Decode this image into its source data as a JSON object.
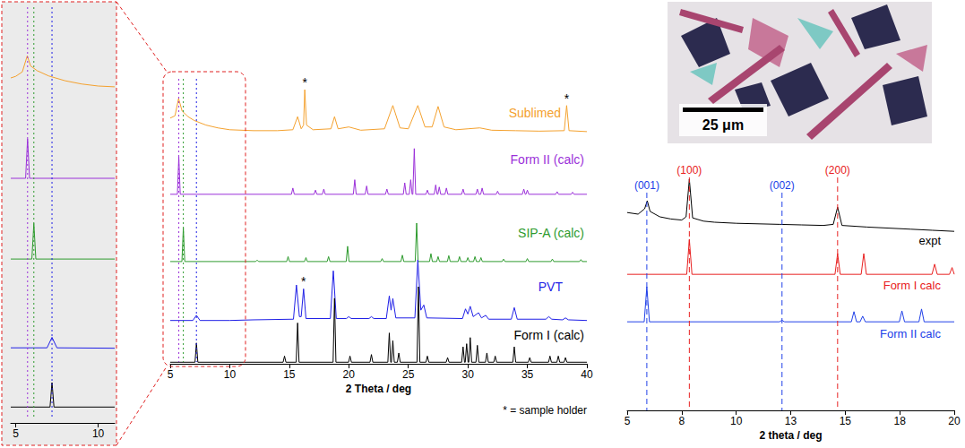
{
  "micrograph": {
    "scale_bar": "25 μm"
  },
  "chart_data": [
    {
      "type": "line",
      "xlim": [
        4.7,
        11
      ],
      "xticks": [
        5,
        10
      ],
      "ylim": [
        0,
        100
      ],
      "tick_labels": "x",
      "reference_lines": [
        {
          "x": 5.72,
          "color": "#9b30d9",
          "line_style": "dotted"
        },
        {
          "x": 6.1,
          "color": "#2e9b2e",
          "line_style": "dotted"
        },
        {
          "x": 7.2,
          "color": "#1f1fe6",
          "line_style": "dotted"
        }
      ],
      "series": [
        {
          "color": "#f4a12e",
          "x": [
            4.7,
            5.0,
            5.4,
            5.7,
            5.9,
            6.3,
            7,
            8,
            9,
            10,
            11
          ],
          "values": [
            40,
            44,
            55,
            95,
            70,
            58,
            45,
            33,
            25,
            20,
            18
          ]
        },
        {
          "color": "#9b30d9",
          "x": [
            4.7,
            5.6,
            5.72,
            5.84,
            11
          ],
          "values": [
            2,
            2,
            90,
            2,
            2
          ]
        },
        {
          "color": "#2e9b2e",
          "x": [
            4.7,
            5.98,
            6.1,
            6.22,
            11
          ],
          "values": [
            2,
            2,
            90,
            2,
            2
          ]
        },
        {
          "color": "#1f1fe6",
          "x": [
            4.7,
            6.9,
            7.2,
            7.5,
            11
          ],
          "values": [
            4,
            4,
            30,
            4,
            3
          ]
        },
        {
          "color": "#000000",
          "x": [
            4.7,
            7.08,
            7.2,
            7.32,
            11
          ],
          "values": [
            2,
            2,
            80,
            2,
            2
          ]
        }
      ]
    },
    {
      "type": "line",
      "xlabel": "2 Theta / deg",
      "note": "* = sample holder",
      "xlim": [
        5,
        40
      ],
      "xticks": [
        5,
        10,
        15,
        20,
        25,
        30,
        35,
        40
      ],
      "ylim": [
        0,
        100
      ],
      "tick_labels": "x",
      "reference_lines": [
        {
          "x": 5.72,
          "color": "#9b30d9",
          "line_style": "dotted"
        },
        {
          "x": 6.1,
          "color": "#2e9b2e",
          "line_style": "dotted"
        },
        {
          "x": 7.2,
          "color": "#1f1fe6",
          "line_style": "dotted"
        }
      ],
      "series": [
        {
          "name": "Sublimed",
          "color": "#f4a12e",
          "x": [
            5.0,
            5.4,
            5.7,
            6.0,
            6.5,
            7,
            8,
            9,
            10,
            12,
            14,
            15.3,
            15.7,
            16.0,
            16.2,
            16.3,
            16.45,
            17,
            18.5,
            18.8,
            19.1,
            20.0,
            21,
            23,
            23.7,
            24.3,
            25,
            25.8,
            26.4,
            27,
            27.5,
            28,
            29,
            30,
            31,
            32,
            34,
            36,
            38.1,
            38.3,
            38.5,
            40
          ],
          "values": [
            35,
            40,
            77,
            50,
            38,
            30,
            20,
            14,
            10,
            8,
            8,
            10,
            38,
            12,
            20,
            96,
            20,
            10,
            12,
            38,
            12,
            16,
            9,
            12,
            62,
            14,
            12,
            62,
            16,
            16,
            60,
            16,
            10,
            12,
            14,
            9,
            8,
            7,
            8,
            62,
            8,
            6
          ],
          "annotations": [
            {
              "x": 16.3,
              "y": 96,
              "text": "*"
            },
            {
              "x": 38.3,
              "y": 62,
              "text": "*"
            }
          ]
        },
        {
          "name": "Form II (calc)",
          "color": "#9b30d9",
          "x": [
            5,
            5.6,
            5.72,
            5.84,
            15.18,
            15.3,
            15.42,
            17.08,
            17.2,
            17.32,
            17.78,
            17.9,
            18.02,
            20.38,
            20.5,
            20.62,
            21.38,
            21.5,
            21.62,
            23.08,
            23.2,
            23.32,
            24.58,
            24.7,
            24.82,
            25.08,
            25.2,
            25.32,
            25.38,
            25.5,
            25.62,
            26.48,
            26.6,
            26.72,
            27.18,
            27.3,
            27.42,
            27.48,
            27.6,
            27.72,
            28.08,
            28.2,
            28.32,
            29.48,
            29.6,
            29.72,
            30.68,
            30.8,
            30.92,
            31.08,
            31.2,
            31.32,
            32.38,
            32.5,
            32.62,
            34.58,
            34.7,
            34.82,
            34.88,
            35.0,
            35.12,
            37.38,
            37.5,
            37.62,
            38.68,
            38.8,
            38.92,
            40
          ],
          "values": [
            2,
            2,
            74,
            2,
            2,
            14,
            2,
            2,
            10,
            2,
            2,
            12,
            2,
            2,
            30,
            2,
            2,
            18,
            2,
            2,
            12,
            2,
            2,
            24,
            2,
            2,
            30,
            2,
            2,
            90,
            2,
            2,
            10,
            2,
            2,
            20,
            2,
            2,
            16,
            2,
            2,
            14,
            2,
            2,
            12,
            2,
            2,
            12,
            2,
            2,
            14,
            2,
            2,
            8,
            2,
            2,
            12,
            2,
            2,
            10,
            2,
            2,
            7,
            2,
            2,
            6,
            2,
            2
          ]
        },
        {
          "name": "SIP-A (calc)",
          "color": "#2e9b2e",
          "x": [
            5,
            5.98,
            6.1,
            6.22,
            12.18,
            12.3,
            12.42,
            14.78,
            14.9,
            15.02,
            16.28,
            16.4,
            16.52,
            18.18,
            18.3,
            18.42,
            19.78,
            19.9,
            20.02,
            22.68,
            22.8,
            22.92,
            24.38,
            24.5,
            24.62,
            25.58,
            25.7,
            25.82,
            26.78,
            26.9,
            27.02,
            27.38,
            27.5,
            27.62,
            28.28,
            28.4,
            28.52,
            29.18,
            29.3,
            29.42,
            29.88,
            30.0,
            30.12,
            30.48,
            30.6,
            30.72,
            30.98,
            31.1,
            31.22,
            32.88,
            33.0,
            33.12,
            34.88,
            35.0,
            35.12,
            36.98,
            37.1,
            37.22,
            39.38,
            39.5,
            39.62,
            40
          ],
          "values": [
            2,
            2,
            70,
            2,
            2,
            5,
            2,
            2,
            12,
            2,
            2,
            10,
            2,
            2,
            12,
            2,
            2,
            33,
            2,
            2,
            8,
            2,
            2,
            15,
            2,
            2,
            80,
            2,
            2,
            18,
            2,
            2,
            12,
            2,
            2,
            14,
            2,
            2,
            12,
            2,
            2,
            10,
            2,
            2,
            12,
            2,
            2,
            10,
            2,
            2,
            7,
            2,
            2,
            8,
            2,
            2,
            7,
            2,
            2,
            6,
            2,
            2
          ]
        },
        {
          "name": "PVT",
          "color": "#1f1fe6",
          "x": [
            5,
            6.9,
            7.2,
            7.5,
            10,
            12,
            15.35,
            15.6,
            15.85,
            16.0,
            16.2,
            16.4,
            18.45,
            18.7,
            18.95,
            19.8,
            20.0,
            20.2,
            21.7,
            21.9,
            22.1,
            23.15,
            23.4,
            23.55,
            23.7,
            23.95,
            25.55,
            25.8,
            26.05,
            26.3,
            26.55,
            29.55,
            29.8,
            30.0,
            30.2,
            30.45,
            30.9,
            31.15,
            31.5,
            31.75,
            33.65,
            33.9,
            34.15,
            36.55,
            36.8,
            37.05,
            37.95,
            38.2,
            38.45,
            40
          ],
          "values": [
            6,
            6,
            14,
            6,
            6,
            7,
            8,
            61,
            12,
            12,
            55,
            9,
            9,
            83,
            9,
            9,
            12,
            9,
            9,
            12,
            9,
            9,
            44,
            22,
            40,
            10,
            10,
            100,
            22,
            30,
            10,
            9,
            24,
            16,
            28,
            12,
            18,
            10,
            14,
            8,
            8,
            26,
            8,
            8,
            12,
            8,
            7,
            10,
            7,
            6
          ],
          "annotations": [
            {
              "x": 16.2,
              "y": 55,
              "text": "*"
            }
          ]
        },
        {
          "name": "Form I (calc)",
          "color": "#000000",
          "x": [
            5,
            7.08,
            7.2,
            7.32,
            14.48,
            14.6,
            14.72,
            15.58,
            15.7,
            15.82,
            18.68,
            18.8,
            18.92,
            19.98,
            20.1,
            20.22,
            21.78,
            21.9,
            22.02,
            23.28,
            23.4,
            23.52,
            23.58,
            23.7,
            23.82,
            24.08,
            24.2,
            24.32,
            25.73,
            25.85,
            25.97,
            26.48,
            26.6,
            26.72,
            28.18,
            28.3,
            28.42,
            29.48,
            29.6,
            29.72,
            29.78,
            29.9,
            30.02,
            30.08,
            30.2,
            30.32,
            30.68,
            30.8,
            30.92,
            31.48,
            31.6,
            31.72,
            32.18,
            32.3,
            32.42,
            33.78,
            33.9,
            34.02,
            35.08,
            35.2,
            35.32,
            36.78,
            36.9,
            37.02,
            37.48,
            37.6,
            37.72,
            38.08,
            38.2,
            38.32,
            40
          ],
          "values": [
            2,
            2,
            27,
            2,
            2,
            10,
            2,
            2,
            53,
            2,
            2,
            85,
            2,
            2,
            10,
            2,
            2,
            12,
            2,
            2,
            40,
            2,
            2,
            30,
            2,
            2,
            14,
            2,
            2,
            100,
            2,
            2,
            10,
            2,
            2,
            8,
            2,
            2,
            22,
            2,
            2,
            26,
            2,
            2,
            34,
            2,
            2,
            24,
            2,
            2,
            14,
            2,
            2,
            10,
            2,
            2,
            22,
            2,
            2,
            8,
            2,
            2,
            10,
            2,
            2,
            10,
            2,
            2,
            8,
            2,
            2
          ]
        }
      ]
    },
    {
      "type": "line",
      "xlabel": "2 theta / deg",
      "xlim": [
        5,
        20
      ],
      "xticks": [
        5,
        {
          "value": 7.5,
          "label": "8"
        },
        10,
        {
          "value": 12.5,
          "label": "13"
        },
        15,
        {
          "value": 17.5,
          "label": "18"
        },
        20
      ],
      "ylim": [
        0,
        100
      ],
      "tick_labels": "x",
      "reference_lines": [
        {
          "x": 5.9,
          "label": "(001)",
          "color": "#2040e8",
          "line_style": "dashed",
          "series": "Form II calc"
        },
        {
          "x": 7.85,
          "label": "(100)",
          "color": "#e82020",
          "line_style": "dashed",
          "series": "Form I calc"
        },
        {
          "x": 12.1,
          "label": "(002)",
          "color": "#2040e8",
          "line_style": "dashed",
          "series": "Form II calc"
        },
        {
          "x": 14.65,
          "label": "(200)",
          "color": "#e82020",
          "line_style": "dashed",
          "series": "Form I calc"
        }
      ],
      "series": [
        {
          "name": "expt",
          "color": "#000000",
          "x": [
            5,
            5.5,
            5.8,
            5.92,
            6.05,
            6.5,
            7,
            7.5,
            7.7,
            7.85,
            8.0,
            8.5,
            9,
            10,
            11,
            12,
            13,
            14,
            14.45,
            14.65,
            14.85,
            16,
            17,
            18,
            19,
            20
          ],
          "values": [
            38,
            35,
            45,
            60,
            40,
            30,
            26,
            24,
            30,
            100,
            28,
            22,
            20,
            18,
            17,
            16,
            15,
            14,
            16,
            48,
            14,
            11,
            9,
            7,
            5,
            3
          ]
        },
        {
          "name": "Form I calc",
          "color": "#e82020",
          "x": [
            5,
            7.73,
            7.85,
            7.97,
            14.53,
            14.65,
            14.77,
            15.73,
            15.85,
            15.97,
            18.98,
            19.1,
            19.22,
            19.78,
            19.9,
            20
          ],
          "values": [
            2,
            2,
            95,
            2,
            2,
            57,
            2,
            2,
            57,
            2,
            2,
            29,
            2,
            2,
            20,
            2
          ]
        },
        {
          "name": "Form II calc",
          "color": "#2040e8",
          "x": [
            5,
            5.78,
            5.9,
            6.02,
            11.98,
            12.1,
            12.22,
            15.28,
            15.4,
            15.52,
            15.68,
            15.8,
            15.92,
            17.48,
            17.6,
            17.72,
            18.38,
            18.5,
            18.62,
            20
          ],
          "values": [
            2,
            2,
            95,
            2,
            2,
            6,
            2,
            2,
            29,
            2,
            2,
            17,
            2,
            2,
            31,
            2,
            2,
            36,
            2,
            2
          ]
        }
      ]
    }
  ]
}
